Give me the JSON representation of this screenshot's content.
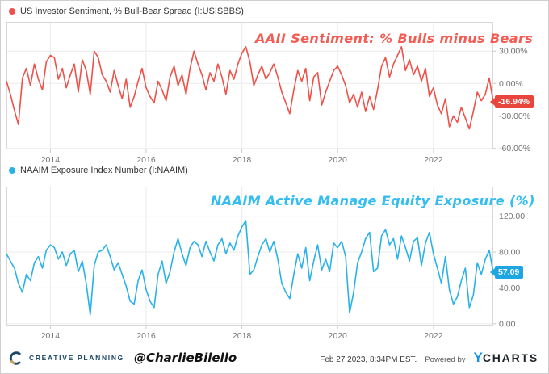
{
  "colors": {
    "red": "#ef5048",
    "red_annotation": "#f45b52",
    "blue": "#29b2e8",
    "blue_annotation": "#33bdf0",
    "navy": "#1d4766",
    "gold": "#c8a063",
    "ycharts_blue": "#1593e0"
  },
  "footer": {
    "brand": "CREATIVE PLANNING",
    "handle": "@CharlieBilello",
    "timestamp": "Feb 27 2023, 8:34PM EST.",
    "powered_by": "Powered by",
    "ycharts_y": "Y",
    "ycharts_rest": "CHARTS"
  },
  "chart_data": [
    {
      "type": "line",
      "name": "US Investor Sentiment, % Bull-Bear Spread (I:USISBBS)",
      "annotation": "AAII Sentiment: % Bulls minus Bears",
      "color": "#ef5048",
      "annotation_color": "#f45b52",
      "badge_color": "#e8453d",
      "last_value": -16.94,
      "last_value_label": "-16.94%",
      "xlim": [
        2013.083,
        2023.25
      ],
      "ylim": [
        -61,
        57
      ],
      "x_start": 2013.083,
      "x_step": 0.083333,
      "grid": true,
      "legend_position": "top-left",
      "x_ticks": [
        {
          "v": 2014,
          "label": "2014"
        },
        {
          "v": 2016,
          "label": "2016"
        },
        {
          "v": 2018,
          "label": "2018"
        },
        {
          "v": 2020,
          "label": "2020"
        },
        {
          "v": 2022,
          "label": "2022"
        }
      ],
      "y_ticks": [
        {
          "v": 30,
          "label": "30.00%"
        },
        {
          "v": 0,
          "label": "0.00%"
        },
        {
          "v": -30,
          "label": "-30.00%"
        },
        {
          "v": -60,
          "label": "-60.00%"
        }
      ],
      "values": [
        2,
        -10,
        -25,
        -38,
        5,
        14,
        -2,
        18,
        4,
        -6,
        20,
        26,
        24,
        4,
        14,
        -4,
        8,
        18,
        -8,
        22,
        12,
        -10,
        30,
        24,
        8,
        2,
        -8,
        12,
        -2,
        -14,
        4,
        -22,
        -12,
        2,
        14,
        -4,
        -12,
        -18,
        2,
        -6,
        -16,
        6,
        16,
        -2,
        8,
        -10,
        14,
        30,
        18,
        8,
        -6,
        10,
        2,
        18,
        6,
        -10,
        12,
        4,
        18,
        28,
        34,
        20,
        -2,
        8,
        16,
        4,
        10,
        18,
        6,
        -8,
        -18,
        -28,
        -6,
        12,
        2,
        14,
        -16,
        6,
        10,
        -20,
        -8,
        2,
        12,
        16,
        8,
        -2,
        -18,
        -10,
        -22,
        -8,
        -26,
        -12,
        -24,
        -6,
        16,
        24,
        6,
        18,
        26,
        34,
        12,
        22,
        8,
        16,
        2,
        14,
        -12,
        -4,
        -20,
        -28,
        -14,
        -40,
        -30,
        -36,
        -22,
        -32,
        -42,
        -26,
        -8,
        -16,
        -10,
        5,
        -16.94
      ]
    },
    {
      "type": "line",
      "name": "NAAIM Exposure Index Number (I:NAAIM)",
      "annotation": "NAAIM Active Manage Equity Exposure (%)",
      "color": "#29b2e8",
      "annotation_color": "#33bdf0",
      "badge_color": "#1ea6e2",
      "last_value": 57.09,
      "last_value_label": "57.09",
      "xlim": [
        2013.083,
        2023.25
      ],
      "ylim": [
        -2,
        153
      ],
      "x_start": 2013.083,
      "x_step": 0.083333,
      "grid": true,
      "legend_position": "top-left",
      "x_ticks": [
        {
          "v": 2014,
          "label": "2014"
        },
        {
          "v": 2016,
          "label": "2016"
        },
        {
          "v": 2018,
          "label": "2018"
        },
        {
          "v": 2020,
          "label": "2020"
        },
        {
          "v": 2022,
          "label": "2022"
        }
      ],
      "y_ticks": [
        {
          "v": 120,
          "label": "120.00"
        },
        {
          "v": 80,
          "label": "80.00"
        },
        {
          "v": 40,
          "label": "40.00"
        },
        {
          "v": 0,
          "label": "0.00"
        }
      ],
      "values": [
        78,
        70,
        62,
        45,
        35,
        55,
        48,
        68,
        75,
        62,
        82,
        88,
        85,
        72,
        80,
        65,
        78,
        82,
        58,
        70,
        45,
        10,
        65,
        80,
        82,
        88,
        75,
        60,
        68,
        55,
        42,
        25,
        22,
        48,
        60,
        38,
        25,
        18,
        55,
        70,
        45,
        58,
        80,
        95,
        78,
        65,
        85,
        92,
        88,
        75,
        92,
        80,
        70,
        88,
        95,
        78,
        90,
        82,
        98,
        108,
        115,
        55,
        60,
        75,
        88,
        95,
        80,
        92,
        72,
        45,
        35,
        28,
        55,
        78,
        62,
        85,
        48,
        70,
        88,
        60,
        72,
        58,
        90,
        85,
        92,
        75,
        12,
        35,
        68,
        80,
        95,
        102,
        58,
        62,
        98,
        105,
        88,
        95,
        72,
        98,
        85,
        70,
        92,
        96,
        65,
        90,
        102,
        78,
        62,
        45,
        75,
        38,
        22,
        30,
        48,
        62,
        18,
        32,
        68,
        55,
        72,
        82,
        57.09
      ]
    }
  ]
}
